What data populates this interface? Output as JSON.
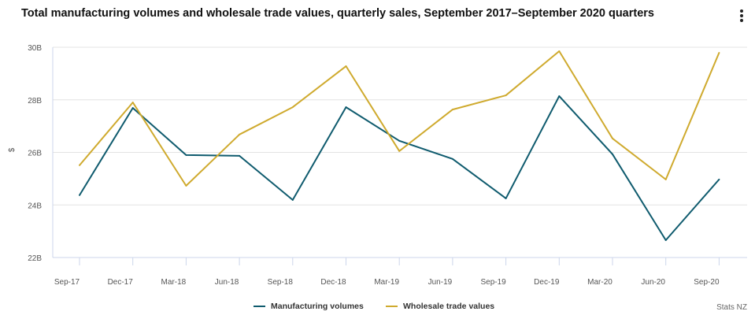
{
  "chart_data": {
    "type": "line",
    "title": "Total manufacturing volumes and wholesale trade values, quarterly sales, September 2017–September 2020 quarters",
    "xlabel": "",
    "ylabel": "$",
    "ylim": [
      22,
      30
    ],
    "yticks": [
      "22B",
      "24B",
      "26B",
      "28B",
      "30B"
    ],
    "ytick_values": [
      22,
      24,
      26,
      28,
      30
    ],
    "categories": [
      "Sep-17",
      "Dec-17",
      "Mar-18",
      "Jun-18",
      "Sep-18",
      "Dec-18",
      "Mar-19",
      "Jun-19",
      "Sep-19",
      "Dec-19",
      "Mar-20",
      "Jun-20",
      "Sep-20"
    ],
    "grid": true,
    "legend_position": "bottom-center",
    "series": [
      {
        "name": "Manufacturing volumes",
        "color": "#0f5b6e",
        "values": [
          24.37,
          27.69,
          25.9,
          25.87,
          24.19,
          27.72,
          26.44,
          25.75,
          24.25,
          28.14,
          25.93,
          22.66,
          24.97
        ]
      },
      {
        "name": "Wholesale trade values",
        "color": "#cfaa2e",
        "values": [
          25.51,
          27.9,
          24.73,
          26.68,
          27.72,
          29.28,
          26.05,
          27.63,
          28.17,
          29.85,
          26.53,
          24.97,
          29.79
        ]
      }
    ]
  },
  "credit": "Stats NZ",
  "menu_icon": "kebab-menu-icon"
}
